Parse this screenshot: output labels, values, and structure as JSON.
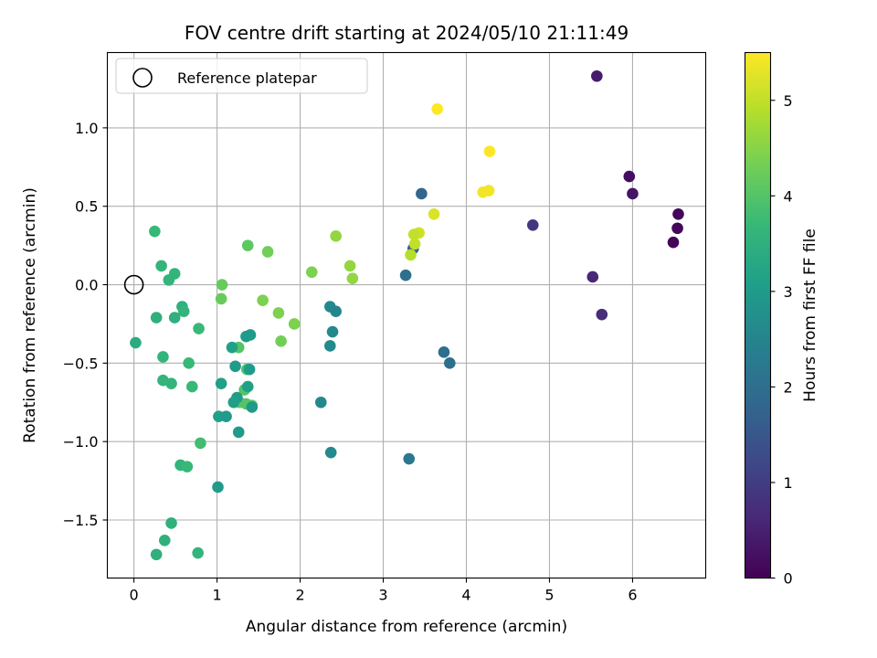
{
  "chart_data": {
    "type": "scatter",
    "title": "FOV centre drift starting at 2024/05/10 21:11:49",
    "xlabel": "Angular distance from reference (arcmin)",
    "ylabel": "Rotation from reference (arcmin)",
    "xlim": [
      -0.32,
      6.88
    ],
    "ylim": [
      -1.87,
      1.48
    ],
    "x_ticks": [
      0,
      1,
      2,
      3,
      4,
      5,
      6
    ],
    "y_ticks": [
      -1.5,
      -1.0,
      -0.5,
      0.0,
      0.5,
      1.0
    ],
    "y_tick_labels": [
      "−1.5",
      "−1.0",
      "−0.5",
      "0.0",
      "0.5",
      "1.0"
    ],
    "grid": true,
    "legend": {
      "position": "upper left",
      "entries": [
        "Reference platepar"
      ]
    },
    "reference_point": {
      "x": 0,
      "y": 0
    },
    "colorbar": {
      "label": "Hours from first FF file",
      "range": [
        0,
        5.5
      ],
      "ticks": [
        0,
        1,
        2,
        3,
        4,
        5
      ],
      "colormap": "viridis"
    },
    "points": [
      {
        "x": 5.57,
        "y": 1.33,
        "c": 0.4
      },
      {
        "x": 5.96,
        "y": 0.69,
        "c": 0.2
      },
      {
        "x": 6.0,
        "y": 0.58,
        "c": 0.3
      },
      {
        "x": 6.55,
        "y": 0.45,
        "c": 0.1
      },
      {
        "x": 6.54,
        "y": 0.36,
        "c": 0.1
      },
      {
        "x": 6.49,
        "y": 0.27,
        "c": 0.05
      },
      {
        "x": 5.52,
        "y": 0.05,
        "c": 0.6
      },
      {
        "x": 5.63,
        "y": -0.19,
        "c": 0.7
      },
      {
        "x": 4.8,
        "y": 0.38,
        "c": 0.9
      },
      {
        "x": 3.46,
        "y": 0.58,
        "c": 1.8
      },
      {
        "x": 3.27,
        "y": 0.06,
        "c": 2.0
      },
      {
        "x": 3.73,
        "y": -0.43,
        "c": 2.0
      },
      {
        "x": 3.8,
        "y": -0.5,
        "c": 2.0
      },
      {
        "x": 3.31,
        "y": -1.11,
        "c": 2.2
      },
      {
        "x": 2.37,
        "y": -1.07,
        "c": 2.6
      },
      {
        "x": 2.25,
        "y": -0.75,
        "c": 2.6
      },
      {
        "x": 2.36,
        "y": -0.14,
        "c": 2.6
      },
      {
        "x": 2.43,
        "y": -0.17,
        "c": 2.5
      },
      {
        "x": 2.39,
        "y": -0.3,
        "c": 2.6
      },
      {
        "x": 2.36,
        "y": -0.39,
        "c": 2.6
      },
      {
        "x": 3.36,
        "y": 0.23,
        "c": 1.7
      },
      {
        "x": 3.65,
        "y": 1.12,
        "c": 5.5
      },
      {
        "x": 4.28,
        "y": 0.85,
        "c": 5.5
      },
      {
        "x": 4.2,
        "y": 0.59,
        "c": 5.4
      },
      {
        "x": 4.27,
        "y": 0.6,
        "c": 5.4
      },
      {
        "x": 3.61,
        "y": 0.45,
        "c": 5.2
      },
      {
        "x": 3.43,
        "y": 0.33,
        "c": 5.1
      },
      {
        "x": 3.37,
        "y": 0.32,
        "c": 5.0
      },
      {
        "x": 3.38,
        "y": 0.26,
        "c": 5.0
      },
      {
        "x": 3.33,
        "y": 0.19,
        "c": 4.9
      },
      {
        "x": 2.43,
        "y": 0.31,
        "c": 4.6
      },
      {
        "x": 2.6,
        "y": 0.12,
        "c": 4.6
      },
      {
        "x": 2.63,
        "y": 0.04,
        "c": 4.6
      },
      {
        "x": 2.14,
        "y": 0.08,
        "c": 4.4
      },
      {
        "x": 1.61,
        "y": 0.21,
        "c": 4.3
      },
      {
        "x": 1.37,
        "y": 0.25,
        "c": 4.1
      },
      {
        "x": 1.06,
        "y": 0.0,
        "c": 4.2
      },
      {
        "x": 1.05,
        "y": -0.09,
        "c": 4.2
      },
      {
        "x": 1.55,
        "y": -0.1,
        "c": 4.4
      },
      {
        "x": 1.74,
        "y": -0.18,
        "c": 4.4
      },
      {
        "x": 1.93,
        "y": -0.25,
        "c": 4.4
      },
      {
        "x": 1.77,
        "y": -0.36,
        "c": 4.3
      },
      {
        "x": 1.26,
        "y": -0.4,
        "c": 4.0
      },
      {
        "x": 1.36,
        "y": -0.54,
        "c": 3.9
      },
      {
        "x": 1.33,
        "y": -0.67,
        "c": 4.0
      },
      {
        "x": 1.27,
        "y": -0.75,
        "c": 4.1
      },
      {
        "x": 1.35,
        "y": -0.76,
        "c": 4.0
      },
      {
        "x": 1.42,
        "y": -0.77,
        "c": 4.1
      },
      {
        "x": 0.25,
        "y": 0.34,
        "c": 3.7
      },
      {
        "x": 0.33,
        "y": 0.12,
        "c": 3.6
      },
      {
        "x": 0.42,
        "y": 0.03,
        "c": 3.6
      },
      {
        "x": 0.49,
        "y": 0.07,
        "c": 3.6
      },
      {
        "x": 0.58,
        "y": -0.14,
        "c": 3.5
      },
      {
        "x": 0.6,
        "y": -0.17,
        "c": 3.6
      },
      {
        "x": 0.49,
        "y": -0.21,
        "c": 3.5
      },
      {
        "x": 0.27,
        "y": -0.21,
        "c": 3.5
      },
      {
        "x": 0.78,
        "y": -0.28,
        "c": 3.7
      },
      {
        "x": 0.02,
        "y": -0.37,
        "c": 3.4
      },
      {
        "x": 0.35,
        "y": -0.46,
        "c": 3.6
      },
      {
        "x": 0.66,
        "y": -0.5,
        "c": 3.7
      },
      {
        "x": 0.35,
        "y": -0.61,
        "c": 3.6
      },
      {
        "x": 0.45,
        "y": -0.63,
        "c": 3.6
      },
      {
        "x": 0.7,
        "y": -0.65,
        "c": 3.7
      },
      {
        "x": 0.8,
        "y": -1.01,
        "c": 3.8
      },
      {
        "x": 0.56,
        "y": -1.15,
        "c": 3.6
      },
      {
        "x": 0.64,
        "y": -1.16,
        "c": 3.7
      },
      {
        "x": 0.45,
        "y": -1.52,
        "c": 3.5
      },
      {
        "x": 0.37,
        "y": -1.63,
        "c": 3.5
      },
      {
        "x": 0.27,
        "y": -1.72,
        "c": 3.5
      },
      {
        "x": 0.77,
        "y": -1.71,
        "c": 3.6
      },
      {
        "x": 1.4,
        "y": -0.32,
        "c": 3.0
      },
      {
        "x": 1.35,
        "y": -0.33,
        "c": 3.0
      },
      {
        "x": 1.18,
        "y": -0.4,
        "c": 3.1
      },
      {
        "x": 1.22,
        "y": -0.52,
        "c": 3.0
      },
      {
        "x": 1.39,
        "y": -0.54,
        "c": 3.0
      },
      {
        "x": 1.05,
        "y": -0.63,
        "c": 3.1
      },
      {
        "x": 1.37,
        "y": -0.65,
        "c": 3.1
      },
      {
        "x": 1.24,
        "y": -0.72,
        "c": 3.0
      },
      {
        "x": 1.2,
        "y": -0.75,
        "c": 3.1
      },
      {
        "x": 1.42,
        "y": -0.78,
        "c": 3.0
      },
      {
        "x": 1.02,
        "y": -0.84,
        "c": 3.1
      },
      {
        "x": 1.11,
        "y": -0.84,
        "c": 3.0
      },
      {
        "x": 1.26,
        "y": -0.94,
        "c": 3.0
      },
      {
        "x": 1.01,
        "y": -1.29,
        "c": 3.0
      }
    ]
  }
}
